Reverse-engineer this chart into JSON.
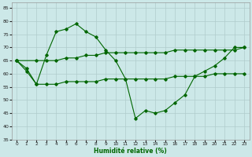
{
  "xlabel": "Humidité relative (%)",
  "xlim": [
    -0.5,
    23.5
  ],
  "ylim": [
    35,
    87
  ],
  "yticks": [
    35,
    40,
    45,
    50,
    55,
    60,
    65,
    70,
    75,
    80,
    85
  ],
  "xticks": [
    0,
    1,
    2,
    3,
    4,
    5,
    6,
    7,
    8,
    9,
    10,
    11,
    12,
    13,
    14,
    15,
    16,
    17,
    18,
    19,
    20,
    21,
    22,
    23
  ],
  "bg_color": "#cce8e8",
  "grid_color": "#b0cccc",
  "line_color": "#006600",
  "line1_x": [
    0,
    1,
    2,
    3,
    4,
    5,
    6,
    7,
    8,
    9,
    10,
    11,
    12,
    13,
    14,
    15,
    16,
    17,
    18,
    19,
    20,
    21,
    22,
    23
  ],
  "line1_y": [
    65,
    61,
    56,
    67,
    76,
    77,
    79,
    76,
    74,
    69,
    65,
    58,
    43,
    46,
    45,
    46,
    49,
    52,
    59,
    61,
    63,
    66,
    70,
    70
  ],
  "line2_x": [
    0,
    1,
    2,
    3,
    4,
    5,
    6,
    7,
    8,
    9,
    10,
    11,
    12,
    13,
    14,
    15,
    16,
    17,
    18,
    19,
    20,
    21,
    22,
    23
  ],
  "line2_y": [
    65,
    62,
    56,
    56,
    56,
    57,
    57,
    57,
    57,
    58,
    58,
    58,
    58,
    58,
    58,
    58,
    59,
    59,
    59,
    59,
    60,
    60,
    60,
    60
  ],
  "line3_x": [
    0,
    2,
    3,
    4,
    5,
    6,
    7,
    8,
    9,
    10,
    11,
    12,
    13,
    14,
    15,
    16,
    17,
    18,
    19,
    20,
    21,
    22,
    23
  ],
  "line3_y": [
    65,
    65,
    65,
    65,
    66,
    66,
    67,
    67,
    68,
    68,
    68,
    68,
    68,
    68,
    68,
    69,
    69,
    69,
    69,
    69,
    69,
    69,
    70
  ]
}
